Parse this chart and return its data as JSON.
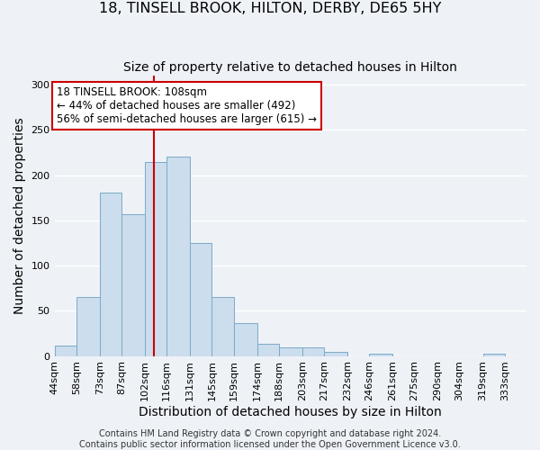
{
  "title": "18, TINSELL BROOK, HILTON, DERBY, DE65 5HY",
  "subtitle": "Size of property relative to detached houses in Hilton",
  "xlabel": "Distribution of detached houses by size in Hilton",
  "ylabel": "Number of detached properties",
  "bin_labels": [
    "44sqm",
    "58sqm",
    "73sqm",
    "87sqm",
    "102sqm",
    "116sqm",
    "131sqm",
    "145sqm",
    "159sqm",
    "174sqm",
    "188sqm",
    "203sqm",
    "217sqm",
    "232sqm",
    "246sqm",
    "261sqm",
    "275sqm",
    "290sqm",
    "304sqm",
    "319sqm",
    "333sqm"
  ],
  "bin_edges": [
    44,
    58,
    73,
    87,
    102,
    116,
    131,
    145,
    159,
    174,
    188,
    203,
    217,
    232,
    246,
    261,
    275,
    290,
    304,
    319,
    333
  ],
  "bar_heights": [
    12,
    65,
    181,
    157,
    215,
    220,
    125,
    65,
    36,
    14,
    10,
    10,
    5,
    0,
    3,
    0,
    0,
    0,
    0,
    3
  ],
  "bar_color": "#ccdded",
  "bar_edge_color": "#7aaac8",
  "property_size": 108,
  "vline_color": "#cc0000",
  "annotation_line1": "18 TINSELL BROOK: 108sqm",
  "annotation_line2": "← 44% of detached houses are smaller (492)",
  "annotation_line3": "56% of semi-detached houses are larger (615) →",
  "annotation_box_color": "#ffffff",
  "annotation_box_edge_color": "#cc0000",
  "ylim": [
    0,
    310
  ],
  "yticks": [
    0,
    50,
    100,
    150,
    200,
    250,
    300
  ],
  "footer": "Contains HM Land Registry data © Crown copyright and database right 2024.\nContains public sector information licensed under the Open Government Licence v3.0.",
  "background_color": "#eef2f7",
  "grid_color": "#ffffff",
  "title_fontsize": 11.5,
  "subtitle_fontsize": 10,
  "axis_label_fontsize": 10,
  "tick_fontsize": 8,
  "footer_fontsize": 7
}
